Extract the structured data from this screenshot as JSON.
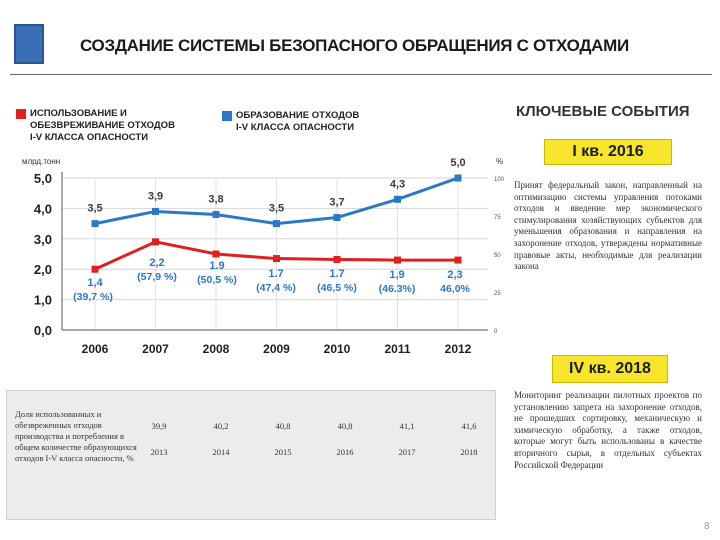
{
  "page": {
    "title": "СОЗДАНИЕ СИСТЕМЫ БЕЗОПАСНОГО ОБРАЩЕНИЯ С ОТХОДАМИ",
    "page_number": "8",
    "accent_color": "#3a6fb5"
  },
  "legend": {
    "red": {
      "label": "ИСПОЛЬЗОВАНИЕ И\nОБЕЗВРЕЖИВАНИЕ ОТХОДОВ\nI-V КЛАССА ОПАСНОСТИ",
      "color": "#e02020"
    },
    "blue": {
      "label": "ОБРАЗОВАНИЕ ОТХОДОВ\nI-V КЛАССА ОПАСНОСТИ",
      "color": "#2d77c7"
    }
  },
  "chart_data": {
    "type": "line",
    "categories": [
      "2006",
      "2007",
      "2008",
      "2009",
      "2010",
      "2011",
      "2012"
    ],
    "ylabel": "млрд.тонн",
    "y2label": "%",
    "ylim": [
      0,
      5
    ],
    "yticks": [
      "0,0",
      "1,0",
      "2,0",
      "3,0",
      "4,0",
      "5,0"
    ],
    "y2ticks": [
      "0",
      "25",
      "50",
      "75",
      "100"
    ],
    "grid": true,
    "series": [
      {
        "name": "ОБРАЗОВАНИЕ ОТХОДОВ I-V КЛАССА ОПАСНОСТИ",
        "color": "#2d77c7",
        "values": [
          3.5,
          3.9,
          3.8,
          3.5,
          3.7,
          4.3,
          5.0
        ],
        "labels": [
          "3,5",
          "3,9",
          "3,8",
          "3,5",
          "3,7",
          "4,3",
          "5,0"
        ]
      },
      {
        "name": "ИСПОЛЬЗОВАНИЕ И ОБЕЗВРЕЖИВАНИЕ ОТХОДОВ I-V КЛАССА ОПАСНОСТИ",
        "color": "#e02020",
        "values": [
          2.0,
          2.9,
          2.5,
          2.35,
          2.32,
          2.3,
          2.3
        ],
        "labels": [
          "1,4",
          "2,2",
          "1.9",
          "1.7",
          "1.7",
          "1,9",
          "2,3"
        ],
        "percent_labels": [
          "(39,7 %)",
          "(57,9 %)",
          "(50,5 %)",
          "(47,4 %)",
          "(46,5 %)",
          "(46.3%)",
          "46,0%"
        ]
      }
    ]
  },
  "key_events": {
    "title": "КЛЮЧЕВЫЕ СОБЫТИЯ",
    "event1": {
      "badge": "I кв. 2016",
      "text": "Принят федеральный закон, направленный на оптимизацию системы управления потоками отходов и введение мер экономического стимулирования хозяйствующих субъектов для уменьшения образования и направления на захоронение отходов, утверждены нормативные правовые акты, необходимые для реализации закона"
    },
    "event2": {
      "badge": "IV кв. 2018",
      "text": "Мониторинг реализации пилотных проектов по установлению запрета на захоронение отходов, не прошедших сортировку, механическую и химическую обработку, а также отходов, которые могут быть использованы в качестве вторичного сырья, в отдельных субъектах Российской Федерации"
    }
  },
  "table": {
    "label": "Доля использованных и обезвреженных отходов производства и потребления в общем количестве образующихся отходов I-V класса опасности, %",
    "row1": [
      "39,9",
      "40,2",
      "40,8",
      "40,8",
      "41,1",
      "41,6"
    ],
    "row2": [
      "2013",
      "2014",
      "2015",
      "2016",
      "2017",
      "2018"
    ]
  }
}
